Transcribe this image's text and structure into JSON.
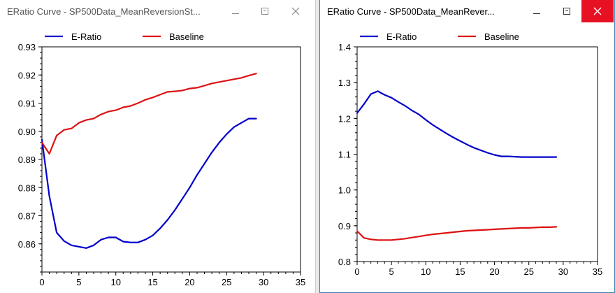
{
  "windows": [
    {
      "id": "left",
      "title": "ERatio Curve - SP500Data_MeanReversionSt...",
      "active": false,
      "chart_data": {
        "type": "line",
        "title": "",
        "xlabel": "",
        "ylabel": "",
        "xlim": [
          0,
          35
        ],
        "ylim": [
          0.85,
          0.93
        ],
        "x_ticks": [
          0,
          5,
          10,
          15,
          20,
          25,
          30,
          35
        ],
        "y_ticks": [
          0.86,
          0.87,
          0.88,
          0.89,
          0.9,
          0.91,
          0.92,
          0.93
        ],
        "x_tick_labels": [
          "0",
          "5",
          "10",
          "15",
          "20",
          "25",
          "30",
          "35"
        ],
        "y_tick_labels": [
          "0.86",
          "0.87",
          "0.88",
          "0.89",
          "0.90",
          "0.91",
          "0.92",
          "0.93"
        ],
        "grid": false,
        "legend": "top-left",
        "x": [
          0,
          1,
          2,
          3,
          4,
          5,
          6,
          7,
          8,
          9,
          10,
          11,
          12,
          13,
          14,
          15,
          16,
          17,
          18,
          19,
          20,
          21,
          22,
          23,
          24,
          25,
          26,
          27,
          28,
          29
        ],
        "series": [
          {
            "name": "E-Ratio",
            "color": "#0000cc",
            "values": [
              0.897,
              0.877,
              0.864,
              0.861,
              0.8595,
              0.859,
              0.8585,
              0.8595,
              0.8615,
              0.8623,
              0.8623,
              0.8608,
              0.8605,
              0.8605,
              0.8615,
              0.863,
              0.8655,
              0.8685,
              0.872,
              0.876,
              0.88,
              0.8845,
              0.8885,
              0.8925,
              0.896,
              0.899,
              0.9015,
              0.903,
              0.9045,
              0.9045
            ]
          },
          {
            "name": "Baseline",
            "color": "#dd1111",
            "values": [
              0.896,
              0.892,
              0.8985,
              0.9005,
              0.901,
              0.903,
              0.904,
              0.9045,
              0.906,
              0.907,
              0.9075,
              0.9085,
              0.909,
              0.91,
              0.9112,
              0.912,
              0.913,
              0.914,
              0.9142,
              0.9145,
              0.9152,
              0.9155,
              0.9162,
              0.917,
              0.9175,
              0.918,
              0.9185,
              0.919,
              0.9198,
              0.9205
            ]
          }
        ]
      }
    },
    {
      "id": "right",
      "title": "ERatio Curve - SP500Data_MeanRever...",
      "active": true,
      "chart_data": {
        "type": "line",
        "title": "",
        "xlabel": "",
        "ylabel": "",
        "xlim": [
          0,
          35
        ],
        "ylim": [
          0.8,
          1.4
        ],
        "x_ticks": [
          0,
          5,
          10,
          15,
          20,
          25,
          30,
          35
        ],
        "y_ticks": [
          0.8,
          0.9,
          1.0,
          1.1,
          1.2,
          1.3,
          1.4
        ],
        "x_tick_labels": [
          "0",
          "5",
          "10",
          "15",
          "20",
          "25",
          "30",
          "35"
        ],
        "y_tick_labels": [
          "0.8",
          "0.9",
          "1.0",
          "1.1",
          "1.2",
          "1.3",
          "1.4"
        ],
        "grid": false,
        "legend": "top-left",
        "x": [
          0,
          1,
          2,
          3,
          4,
          5,
          6,
          7,
          8,
          9,
          10,
          11,
          12,
          13,
          14,
          15,
          16,
          17,
          18,
          19,
          20,
          21,
          22,
          23,
          24,
          25,
          26,
          27,
          28,
          29
        ],
        "series": [
          {
            "name": "E-Ratio",
            "color": "#0000cc",
            "values": [
              1.215,
              1.24,
              1.268,
              1.276,
              1.266,
              1.258,
              1.246,
              1.235,
              1.222,
              1.211,
              1.196,
              1.182,
              1.17,
              1.158,
              1.147,
              1.137,
              1.127,
              1.118,
              1.111,
              1.104,
              1.098,
              1.094,
              1.094,
              1.093,
              1.092,
              1.092,
              1.092,
              1.092,
              1.092,
              1.092
            ]
          },
          {
            "name": "Baseline",
            "color": "#dd1111",
            "values": [
              0.885,
              0.866,
              0.862,
              0.86,
              0.86,
              0.86,
              0.862,
              0.864,
              0.867,
              0.87,
              0.873,
              0.876,
              0.878,
              0.88,
              0.882,
              0.884,
              0.886,
              0.887,
              0.888,
              0.889,
              0.89,
              0.891,
              0.892,
              0.893,
              0.894,
              0.894,
              0.895,
              0.896,
              0.896,
              0.897
            ]
          }
        ]
      }
    }
  ]
}
